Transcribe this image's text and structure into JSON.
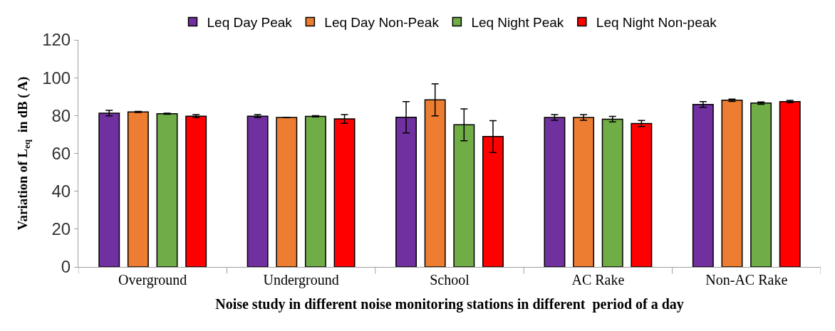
{
  "chart_data": {
    "type": "bar",
    "xlabel": "Noise study in different noise monitoring stations in different  period of a day",
    "ylabel": "Variation of L$_{eq}$  in dB ( A)",
    "categories": [
      "Overground",
      "Underground",
      "School",
      "AC Rake",
      "Non-AC Rake"
    ],
    "series": [
      {
        "name": "Leq Day Peak",
        "color": "#7030a0",
        "values": [
          81.3,
          79.7,
          79.1,
          79.0,
          85.9
        ],
        "errors": [
          1.5,
          0.8,
          8.3,
          1.5,
          1.5
        ]
      },
      {
        "name": "Leq Day Non-Peak",
        "color": "#ed7d31",
        "values": [
          81.9,
          79.0,
          88.3,
          79.0,
          88.1
        ],
        "errors": [
          0.3,
          0,
          8.5,
          1.5,
          0.6
        ]
      },
      {
        "name": "Leq Night Peak",
        "color": "#70ad47",
        "values": [
          81.0,
          79.6,
          75.1,
          78.1,
          86.6
        ],
        "errors": [
          0.3,
          0.3,
          8.4,
          1.5,
          0.6
        ]
      },
      {
        "name": "Leq Night Non-peak",
        "color": "#ff0000",
        "values": [
          79.7,
          78.2,
          68.9,
          75.8,
          87.4
        ],
        "errors": [
          0.8,
          2.3,
          8.4,
          1.6,
          0.6
        ]
      }
    ],
    "ylim": [
      0,
      120
    ],
    "yticks": [
      0,
      20,
      40,
      60,
      80,
      100,
      120
    ],
    "legend": "top"
  }
}
